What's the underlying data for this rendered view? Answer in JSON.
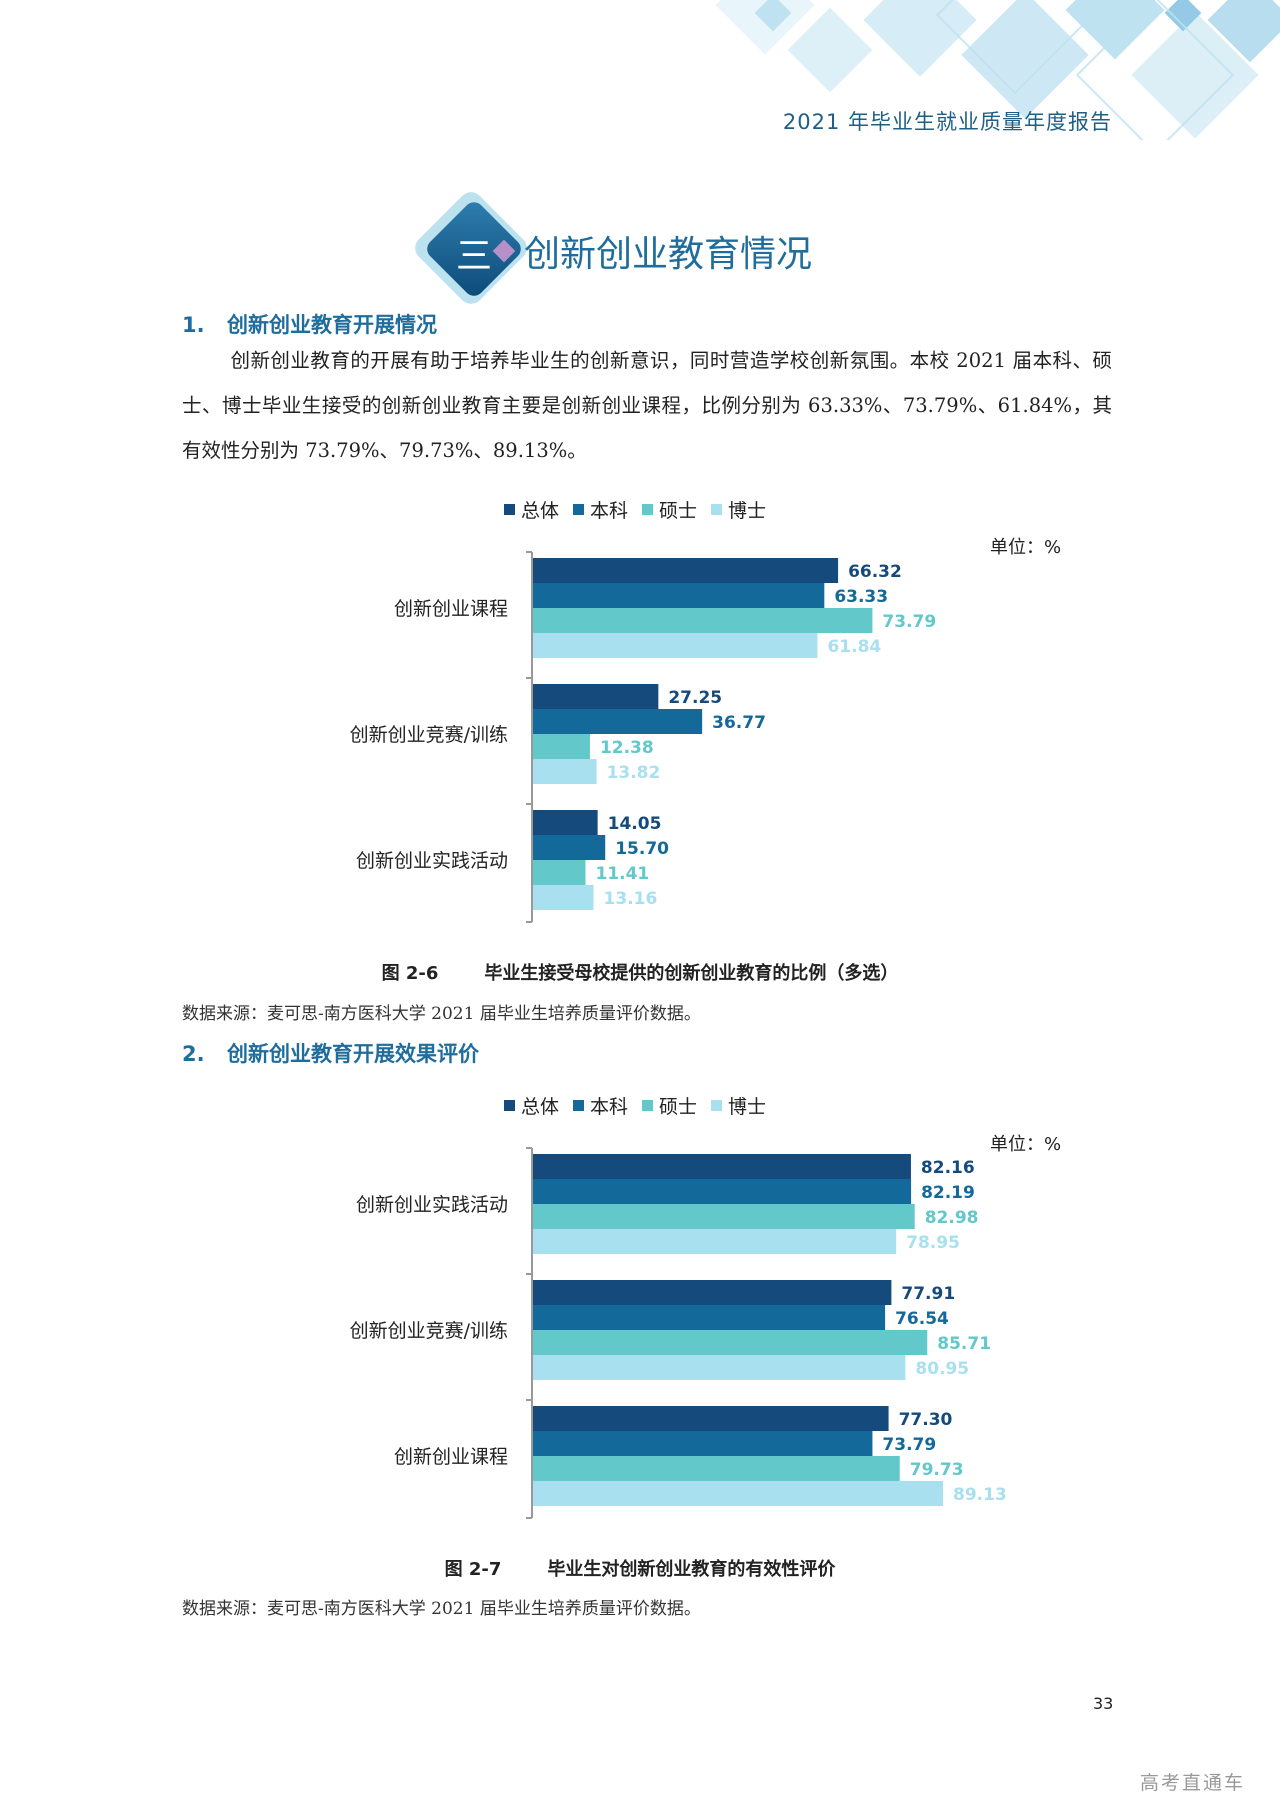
{
  "header": {
    "title": "2021 年毕业生就业质量年度报告"
  },
  "section": {
    "number": "三",
    "title": "创新创业教育情况"
  },
  "subsection1": {
    "number": "1.",
    "title": "创新创业教育开展情况",
    "paragraph": "创新创业教育的开展有助于培养毕业生的创新意识，同时营造学校创新氛围。本校 2021 届本科、硕士、博士毕业生接受的创新创业教育主要是创新创业课程，比例分别为 63.33%、73.79%、61.84%，其有效性分别为 73.79%、79.73%、89.13%。"
  },
  "colors": {
    "total": "#154a7c",
    "undergrad": "#12699a",
    "master": "#62c8c9",
    "doctor": "#a8e0ef"
  },
  "legend": [
    "总体",
    "本科",
    "硕士",
    "博士"
  ],
  "unit": "单位：%",
  "figure1": {
    "label": "图 2-6",
    "title": "毕业生接受母校提供的创新创业教育的比例（多选）",
    "source": "数据来源：麦可思-南方医科大学 2021 届毕业生培养质量评价数据。"
  },
  "subsection2": {
    "number": "2.",
    "title": "创新创业教育开展效果评价"
  },
  "figure2": {
    "label": "图 2-7",
    "title": "毕业生对创新创业教育的有效性评价",
    "source": "数据来源：麦可思-南方医科大学 2021 届毕业生培养质量评价数据。"
  },
  "chart_data": [
    {
      "type": "bar",
      "orientation": "horizontal",
      "categories": [
        "创新创业课程",
        "创新创业竞赛/训练",
        "创新创业实践活动"
      ],
      "series": [
        {
          "name": "总体",
          "values": [
            66.32,
            27.25,
            14.05
          ],
          "labels": [
            "66.32",
            "27.25",
            "14.05"
          ]
        },
        {
          "name": "本科",
          "values": [
            63.33,
            36.77,
            15.7
          ],
          "labels": [
            "63.33",
            "36.77",
            "15.70"
          ]
        },
        {
          "name": "硕士",
          "values": [
            73.79,
            12.38,
            11.41
          ],
          "labels": [
            "73.79",
            "12.38",
            "11.41"
          ]
        },
        {
          "name": "博士",
          "values": [
            61.84,
            13.82,
            13.16
          ],
          "labels": [
            "61.84",
            "13.82",
            "13.16"
          ]
        }
      ],
      "xlim": [
        0,
        100
      ],
      "legend_position": "top"
    },
    {
      "type": "bar",
      "orientation": "horizontal",
      "categories": [
        "创新创业实践活动",
        "创新创业竞赛/训练",
        "创新创业课程"
      ],
      "series": [
        {
          "name": "总体",
          "values": [
            82.16,
            77.91,
            77.3
          ],
          "labels": [
            "82.16",
            "77.91",
            "77.30"
          ]
        },
        {
          "name": "本科",
          "values": [
            82.19,
            76.54,
            73.79
          ],
          "labels": [
            "82.19",
            "76.54",
            "73.79"
          ]
        },
        {
          "name": "硕士",
          "values": [
            82.98,
            85.71,
            79.73
          ],
          "labels": [
            "82.98",
            "85.71",
            "79.73"
          ]
        },
        {
          "name": "博士",
          "values": [
            78.95,
            80.95,
            89.13
          ],
          "labels": [
            "78.95",
            "80.95",
            "89.13"
          ]
        }
      ],
      "xlim": [
        0,
        100
      ],
      "legend_position": "top"
    }
  ],
  "page_number": "33",
  "watermark": "高考直通车"
}
